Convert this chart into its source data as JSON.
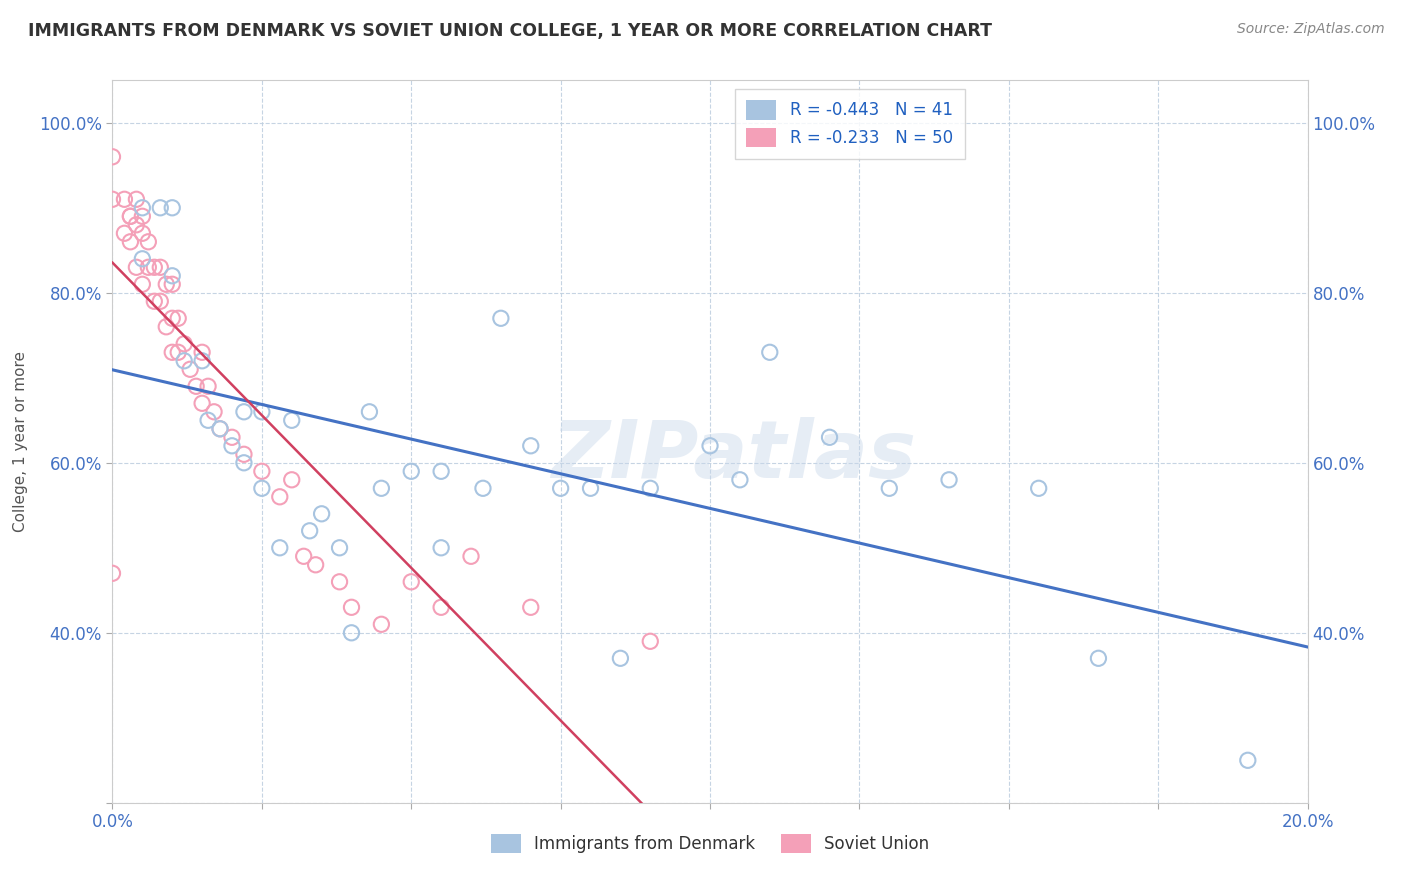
{
  "title": "IMMIGRANTS FROM DENMARK VS SOVIET UNION COLLEGE, 1 YEAR OR MORE CORRELATION CHART",
  "source_text": "Source: ZipAtlas.com",
  "ylabel": "College, 1 year or more",
  "xlim": [
    0.0,
    0.2
  ],
  "ylim": [
    0.2,
    1.05
  ],
  "x_ticks": [
    0.0,
    0.025,
    0.05,
    0.075,
    0.1,
    0.125,
    0.15,
    0.175,
    0.2
  ],
  "y_ticks": [
    0.2,
    0.4,
    0.6,
    0.8,
    1.0
  ],
  "y_tick_labels": [
    "",
    "40.0%",
    "60.0%",
    "80.0%",
    "100.0%"
  ],
  "denmark_R": -0.443,
  "denmark_N": 41,
  "soviet_R": -0.233,
  "soviet_N": 50,
  "denmark_dot_color": "#a8c4e0",
  "soviet_dot_color": "#f4a0b8",
  "denmark_line_color": "#4472c4",
  "soviet_line_color": "#d04060",
  "soviet_line_faint_color": "#f0b0c0",
  "legend_R_color": "#2060c0",
  "background_color": "#ffffff",
  "grid_color": "#c0d0e0",
  "watermark_text": "ZIPatlas",
  "denmark_scatter_x": [
    0.005,
    0.005,
    0.008,
    0.01,
    0.01,
    0.012,
    0.015,
    0.016,
    0.018,
    0.02,
    0.022,
    0.022,
    0.025,
    0.025,
    0.028,
    0.03,
    0.033,
    0.035,
    0.038,
    0.04,
    0.043,
    0.045,
    0.05,
    0.055,
    0.055,
    0.062,
    0.065,
    0.07,
    0.075,
    0.08,
    0.085,
    0.09,
    0.1,
    0.105,
    0.11,
    0.12,
    0.13,
    0.14,
    0.155,
    0.165,
    0.19
  ],
  "denmark_scatter_y": [
    0.9,
    0.84,
    0.9,
    0.9,
    0.82,
    0.72,
    0.72,
    0.65,
    0.64,
    0.62,
    0.6,
    0.66,
    0.66,
    0.57,
    0.5,
    0.65,
    0.52,
    0.54,
    0.5,
    0.4,
    0.66,
    0.57,
    0.59,
    0.59,
    0.5,
    0.57,
    0.77,
    0.62,
    0.57,
    0.57,
    0.37,
    0.57,
    0.62,
    0.58,
    0.73,
    0.63,
    0.57,
    0.58,
    0.57,
    0.37,
    0.25
  ],
  "soviet_scatter_x": [
    0.0,
    0.0,
    0.0,
    0.002,
    0.002,
    0.003,
    0.003,
    0.003,
    0.004,
    0.004,
    0.004,
    0.005,
    0.005,
    0.005,
    0.006,
    0.006,
    0.007,
    0.007,
    0.008,
    0.008,
    0.009,
    0.009,
    0.01,
    0.01,
    0.01,
    0.011,
    0.011,
    0.012,
    0.013,
    0.014,
    0.015,
    0.015,
    0.016,
    0.017,
    0.018,
    0.02,
    0.022,
    0.025,
    0.028,
    0.03,
    0.032,
    0.034,
    0.038,
    0.04,
    0.045,
    0.05,
    0.055,
    0.06,
    0.07,
    0.09
  ],
  "soviet_scatter_y": [
    0.96,
    0.91,
    0.47,
    0.91,
    0.87,
    0.89,
    0.89,
    0.86,
    0.91,
    0.88,
    0.83,
    0.89,
    0.87,
    0.81,
    0.86,
    0.83,
    0.83,
    0.79,
    0.83,
    0.79,
    0.81,
    0.76,
    0.81,
    0.77,
    0.73,
    0.77,
    0.73,
    0.74,
    0.71,
    0.69,
    0.73,
    0.67,
    0.69,
    0.66,
    0.64,
    0.63,
    0.61,
    0.59,
    0.56,
    0.58,
    0.49,
    0.48,
    0.46,
    0.43,
    0.41,
    0.46,
    0.43,
    0.49,
    0.43,
    0.39
  ]
}
